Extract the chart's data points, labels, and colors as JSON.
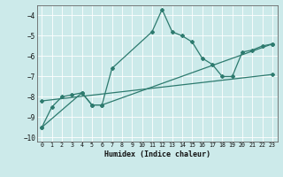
{
  "xlabel": "Humidex (Indice chaleur)",
  "bg_color": "#cceaea",
  "grid_color": "#ffffff",
  "line_color": "#2d7a6e",
  "xlim": [
    -0.5,
    23.5
  ],
  "ylim": [
    -10.2,
    -3.5
  ],
  "yticks": [
    -10,
    -9,
    -8,
    -7,
    -6,
    -5,
    -4
  ],
  "xticks": [
    0,
    1,
    2,
    3,
    4,
    5,
    6,
    7,
    8,
    9,
    10,
    11,
    12,
    13,
    14,
    15,
    16,
    17,
    18,
    19,
    20,
    21,
    22,
    23
  ],
  "line1_x": [
    0,
    1,
    2,
    3,
    4,
    5,
    6,
    7,
    11,
    12,
    13,
    14,
    15,
    16,
    17,
    18,
    19,
    20,
    21,
    22,
    23
  ],
  "line1_y": [
    -9.5,
    -8.5,
    -8.0,
    -7.9,
    -7.8,
    -8.4,
    -8.4,
    -6.6,
    -4.8,
    -3.7,
    -4.8,
    -5.0,
    -5.3,
    -6.1,
    -6.4,
    -7.0,
    -7.0,
    -5.8,
    -5.7,
    -5.5,
    -5.4
  ],
  "line2_x": [
    0,
    4,
    5,
    6,
    23
  ],
  "line2_y": [
    -9.5,
    -7.8,
    -8.4,
    -8.4,
    -5.4
  ],
  "line3_x": [
    0,
    23
  ],
  "line3_y": [
    -8.2,
    -6.9
  ]
}
